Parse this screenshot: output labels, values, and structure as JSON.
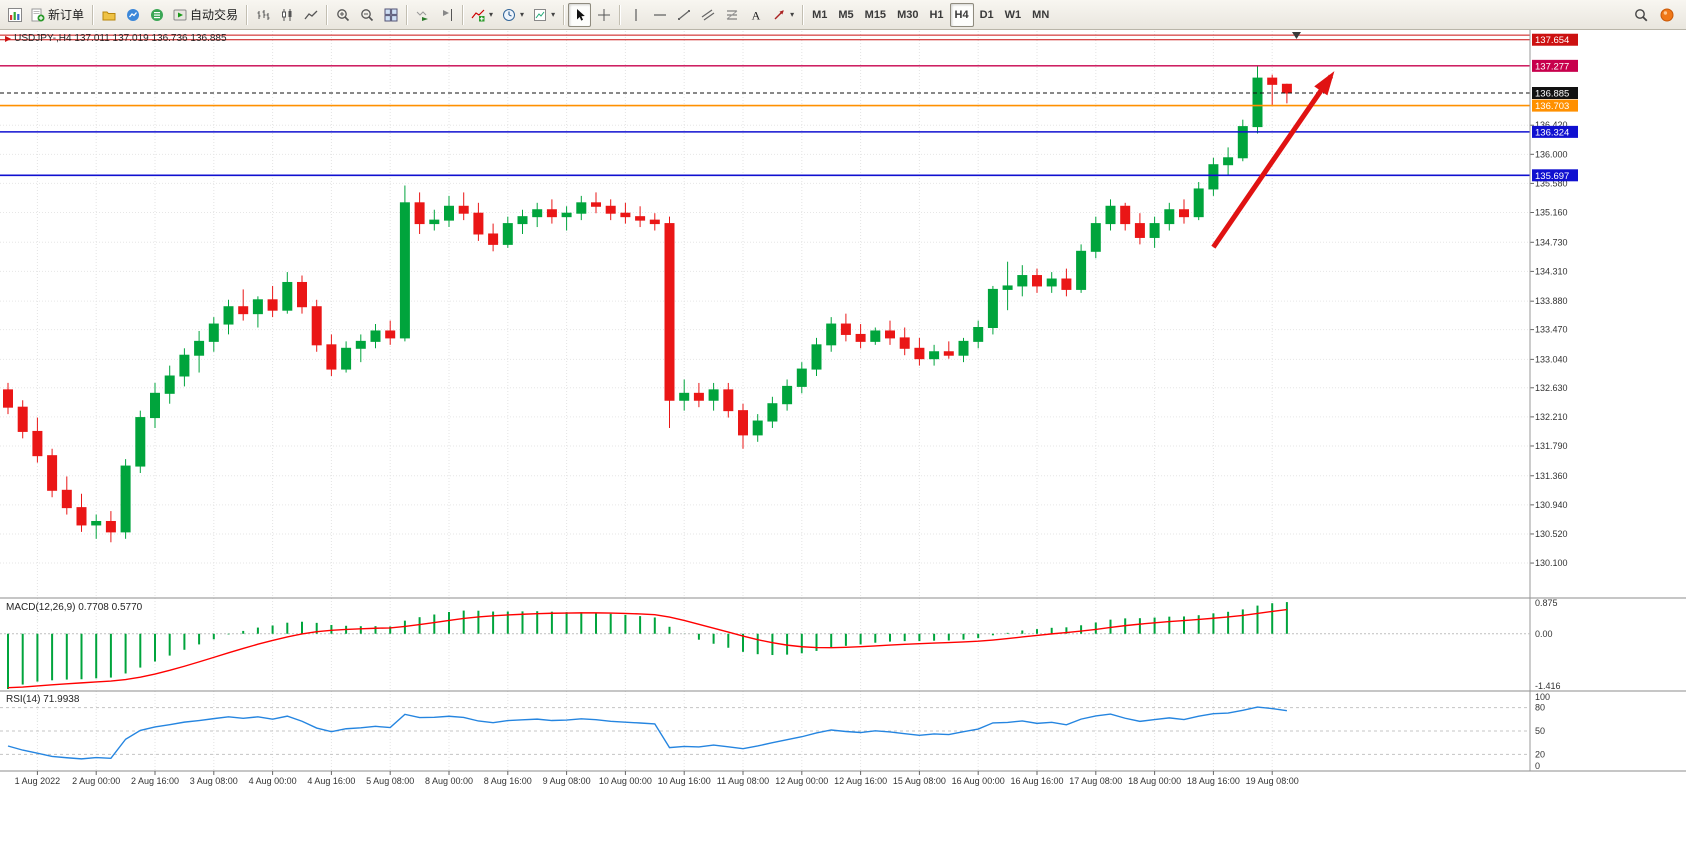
{
  "toolbar": {
    "items": [
      {
        "type": "btn",
        "icon": "chart-window-icon",
        "name": "charts-button"
      },
      {
        "type": "btn",
        "icon": "new-order-icon",
        "name": "new-order-button",
        "label": "新订单"
      },
      {
        "type": "sep"
      },
      {
        "type": "btn",
        "icon": "profiles-icon",
        "name": "profiles-button"
      },
      {
        "type": "btn",
        "icon": "market-watch-icon",
        "name": "market-watch-button"
      },
      {
        "type": "btn",
        "icon": "data-window-icon",
        "name": "data-window-button"
      },
      {
        "type": "btn",
        "icon": "autotrade-icon",
        "name": "auto-trading-button",
        "label": "自动交易"
      },
      {
        "type": "sep"
      },
      {
        "type": "btn",
        "icon": "bars-icon",
        "name": "bar-chart-button"
      },
      {
        "type": "btn",
        "icon": "candles-icon",
        "name": "candlestick-chart-button"
      },
      {
        "type": "btn",
        "icon": "linechart-icon",
        "name": "line-chart-button"
      },
      {
        "type": "sep"
      },
      {
        "type": "btn",
        "icon": "zoom-in-icon",
        "name": "zoom-in-button"
      },
      {
        "type": "btn",
        "icon": "zoom-out-icon",
        "name": "zoom-out-button"
      },
      {
        "type": "btn",
        "icon": "tile-icon",
        "name": "tile-windows-button"
      },
      {
        "type": "sep"
      },
      {
        "type": "btn",
        "icon": "autoscroll-icon",
        "name": "auto-scroll-button"
      },
      {
        "type": "btn",
        "icon": "shift-icon",
        "name": "chart-shift-button"
      },
      {
        "type": "sep"
      },
      {
        "type": "btn",
        "icon": "indicators-icon",
        "name": "indicators-button",
        "caret": true
      },
      {
        "type": "btn",
        "icon": "periods-icon",
        "name": "periods-button",
        "caret": true
      },
      {
        "type": "btn",
        "icon": "templates-icon",
        "name": "templates-button",
        "caret": true
      },
      {
        "type": "sep"
      },
      {
        "type": "btn",
        "icon": "cursor-icon",
        "name": "cursor-button",
        "active": true
      },
      {
        "type": "btn",
        "icon": "crosshair-icon",
        "name": "crosshair-button"
      },
      {
        "type": "sep"
      },
      {
        "type": "btn",
        "icon": "vline-icon",
        "name": "vertical-line-button"
      },
      {
        "type": "btn",
        "icon": "hline-icon",
        "name": "horizontal-line-button"
      },
      {
        "type": "btn",
        "icon": "trendline-icon",
        "name": "trendline-button"
      },
      {
        "type": "btn",
        "icon": "channel-icon",
        "name": "channel-button"
      },
      {
        "type": "btn",
        "icon": "fibo-icon",
        "name": "fibonacci-button"
      },
      {
        "type": "btn",
        "icon": "text-icon",
        "name": "text-button"
      },
      {
        "type": "btn",
        "icon": "arrows-icon",
        "name": "arrows-button",
        "caret": true
      },
      {
        "type": "sep"
      },
      {
        "type": "tf",
        "label": "M1"
      },
      {
        "type": "tf",
        "label": "M5"
      },
      {
        "type": "tf",
        "label": "M15"
      },
      {
        "type": "tf",
        "label": "M30"
      },
      {
        "type": "tf",
        "label": "H1"
      },
      {
        "type": "tf",
        "label": "H4",
        "active": true
      },
      {
        "type": "tf",
        "label": "D1"
      },
      {
        "type": "tf",
        "label": "W1"
      },
      {
        "type": "tf",
        "label": "MN"
      }
    ],
    "right_items": [
      {
        "icon": "search-icon",
        "name": "search-button"
      },
      {
        "icon": "status-icon",
        "name": "status-indicator"
      }
    ]
  },
  "chart": {
    "title": "USDJPY-,H4 137.011 137.019 136.736 136.885",
    "symbol": "USDJPY-",
    "period": "H4",
    "ohlc": {
      "open": "137.011",
      "high": "137.019",
      "low": "136.736",
      "close": "136.885"
    }
  },
  "chart_data": {
    "type": "candlestick",
    "symbol": "USDJPY",
    "timeframe": "H4",
    "up_color": "#00a43c",
    "down_color": "#ea1616",
    "price_range_top": 137.78,
    "price_range_bottom": 129.61,
    "candles": [
      [
        132.6,
        132.7,
        132.25,
        132.35
      ],
      [
        132.35,
        132.45,
        131.9,
        132.0
      ],
      [
        132.0,
        132.2,
        131.55,
        131.65
      ],
      [
        131.65,
        131.75,
        131.05,
        131.15
      ],
      [
        131.15,
        131.35,
        130.8,
        130.9
      ],
      [
        130.9,
        131.1,
        130.55,
        130.65
      ],
      [
        130.65,
        130.8,
        130.45,
        130.7
      ],
      [
        130.7,
        130.85,
        130.4,
        130.55
      ],
      [
        130.55,
        131.6,
        130.45,
        131.5
      ],
      [
        131.5,
        132.3,
        131.4,
        132.2
      ],
      [
        132.2,
        132.7,
        132.05,
        132.55
      ],
      [
        132.55,
        132.95,
        132.4,
        132.8
      ],
      [
        132.8,
        133.2,
        132.65,
        133.1
      ],
      [
        133.1,
        133.45,
        132.85,
        133.3
      ],
      [
        133.3,
        133.65,
        133.15,
        133.55
      ],
      [
        133.55,
        133.9,
        133.4,
        133.8
      ],
      [
        133.8,
        134.05,
        133.6,
        133.7
      ],
      [
        133.7,
        133.95,
        133.5,
        133.9
      ],
      [
        133.9,
        134.1,
        133.65,
        133.75
      ],
      [
        133.75,
        134.3,
        133.7,
        134.15
      ],
      [
        134.15,
        134.25,
        133.7,
        133.8
      ],
      [
        133.8,
        133.9,
        133.15,
        133.25
      ],
      [
        133.25,
        133.4,
        132.8,
        132.9
      ],
      [
        132.9,
        133.3,
        132.85,
        133.2
      ],
      [
        133.2,
        133.4,
        133.0,
        133.3
      ],
      [
        133.3,
        133.55,
        133.2,
        133.45
      ],
      [
        133.45,
        133.6,
        133.25,
        133.35
      ],
      [
        133.35,
        135.55,
        133.3,
        135.3
      ],
      [
        135.3,
        135.45,
        134.85,
        135.0
      ],
      [
        135.0,
        135.2,
        134.9,
        135.05
      ],
      [
        135.05,
        135.4,
        134.95,
        135.25
      ],
      [
        135.25,
        135.45,
        135.05,
        135.15
      ],
      [
        135.15,
        135.3,
        134.75,
        134.85
      ],
      [
        134.85,
        135.0,
        134.6,
        134.7
      ],
      [
        134.7,
        135.1,
        134.65,
        135.0
      ],
      [
        135.0,
        135.2,
        134.85,
        135.1
      ],
      [
        135.1,
        135.3,
        134.95,
        135.2
      ],
      [
        135.2,
        135.35,
        135.0,
        135.1
      ],
      [
        135.1,
        135.25,
        134.9,
        135.15
      ],
      [
        135.15,
        135.4,
        135.05,
        135.3
      ],
      [
        135.3,
        135.45,
        135.15,
        135.25
      ],
      [
        135.25,
        135.35,
        135.05,
        135.15
      ],
      [
        135.15,
        135.3,
        135.0,
        135.1
      ],
      [
        135.1,
        135.25,
        134.95,
        135.05
      ],
      [
        135.05,
        135.15,
        134.9,
        135.0
      ],
      [
        135.0,
        135.1,
        132.05,
        132.45
      ],
      [
        132.45,
        132.75,
        132.3,
        132.55
      ],
      [
        132.55,
        132.7,
        132.35,
        132.45
      ],
      [
        132.45,
        132.7,
        132.3,
        132.6
      ],
      [
        132.6,
        132.7,
        132.2,
        132.3
      ],
      [
        132.3,
        132.4,
        131.75,
        131.95
      ],
      [
        131.95,
        132.25,
        131.85,
        132.15
      ],
      [
        132.15,
        132.5,
        132.05,
        132.4
      ],
      [
        132.4,
        132.75,
        132.3,
        132.65
      ],
      [
        132.65,
        133.0,
        132.55,
        132.9
      ],
      [
        132.9,
        133.35,
        132.8,
        133.25
      ],
      [
        133.25,
        133.65,
        133.15,
        133.55
      ],
      [
        133.55,
        133.7,
        133.3,
        133.4
      ],
      [
        133.4,
        133.55,
        133.2,
        133.3
      ],
      [
        133.3,
        133.5,
        133.25,
        133.45
      ],
      [
        133.45,
        133.6,
        133.25,
        133.35
      ],
      [
        133.35,
        133.5,
        133.1,
        133.2
      ],
      [
        133.2,
        133.35,
        132.95,
        133.05
      ],
      [
        133.05,
        133.25,
        132.95,
        133.15
      ],
      [
        133.15,
        133.3,
        133.05,
        133.1
      ],
      [
        133.1,
        133.35,
        133.0,
        133.3
      ],
      [
        133.3,
        133.6,
        133.2,
        133.5
      ],
      [
        133.5,
        134.1,
        133.4,
        134.05
      ],
      [
        134.05,
        134.45,
        133.75,
        134.1
      ],
      [
        134.1,
        134.4,
        133.95,
        134.25
      ],
      [
        134.25,
        134.35,
        134.0,
        134.1
      ],
      [
        134.1,
        134.3,
        134.0,
        134.2
      ],
      [
        134.2,
        134.35,
        133.95,
        134.05
      ],
      [
        134.05,
        134.7,
        134.0,
        134.6
      ],
      [
        134.6,
        135.1,
        134.5,
        135.0
      ],
      [
        135.0,
        135.35,
        134.9,
        135.25
      ],
      [
        135.25,
        135.3,
        134.9,
        135.0
      ],
      [
        135.0,
        135.15,
        134.7,
        134.8
      ],
      [
        134.8,
        135.1,
        134.65,
        135.0
      ],
      [
        135.0,
        135.3,
        134.9,
        135.2
      ],
      [
        135.2,
        135.35,
        135.0,
        135.1
      ],
      [
        135.1,
        135.6,
        135.05,
        135.5
      ],
      [
        135.5,
        135.95,
        135.4,
        135.85
      ],
      [
        135.85,
        136.1,
        135.7,
        135.95
      ],
      [
        135.95,
        136.5,
        135.9,
        136.4
      ],
      [
        136.4,
        137.27,
        136.3,
        137.1
      ],
      [
        137.1,
        137.15,
        136.7,
        137.01
      ],
      [
        137.011,
        137.019,
        136.736,
        136.885
      ]
    ],
    "time_labels": [
      {
        "i": 2,
        "t": "1 Aug 2022"
      },
      {
        "i": 6,
        "t": "2 Aug 00:00"
      },
      {
        "i": 10,
        "t": "2 Aug 16:00"
      },
      {
        "i": 14,
        "t": "3 Aug 08:00"
      },
      {
        "i": 18,
        "t": "4 Aug 00:00"
      },
      {
        "i": 22,
        "t": "4 Aug 16:00"
      },
      {
        "i": 26,
        "t": "5 Aug 08:00"
      },
      {
        "i": 30,
        "t": "8 Aug 00:00"
      },
      {
        "i": 34,
        "t": "8 Aug 16:00"
      },
      {
        "i": 38,
        "t": "9 Aug 08:00"
      },
      {
        "i": 42,
        "t": "10 Aug 00:00"
      },
      {
        "i": 46,
        "t": "10 Aug 16:00"
      },
      {
        "i": 50,
        "t": "11 Aug 08:00"
      },
      {
        "i": 54,
        "t": "12 Aug 00:00"
      },
      {
        "i": 58,
        "t": "12 Aug 16:00"
      },
      {
        "i": 62,
        "t": "15 Aug 08:00"
      },
      {
        "i": 66,
        "t": "16 Aug 00:00"
      },
      {
        "i": 70,
        "t": "16 Aug 16:00"
      },
      {
        "i": 74,
        "t": "17 Aug 08:00"
      },
      {
        "i": 78,
        "t": "18 Aug 00:00"
      },
      {
        "i": 82,
        "t": "18 Aug 16:00"
      },
      {
        "i": 86,
        "t": "19 Aug 08:00"
      }
    ],
    "price_ticks": [
      "136.420",
      "136.000",
      "135.580",
      "135.160",
      "134.730",
      "134.310",
      "133.880",
      "133.470",
      "133.040",
      "132.630",
      "132.210",
      "131.790",
      "131.360",
      "130.940",
      "130.520",
      "130.100"
    ],
    "hlines": [
      {
        "price": 137.72,
        "color": "#cc1111",
        "width": 1,
        "label": null
      },
      {
        "price": 137.654,
        "color": "#cc1111",
        "width": 1,
        "label": "137.654"
      },
      {
        "price": 137.277,
        "color": "#c7004c",
        "width": 1.4,
        "label": "137.277"
      },
      {
        "price": 136.703,
        "color": "#ff9000",
        "width": 1.6,
        "label": "136.703"
      },
      {
        "price": 136.324,
        "color": "#1010d0",
        "width": 1.6,
        "label": "136.324"
      },
      {
        "price": 135.697,
        "color": "#1010d0",
        "width": 1.6,
        "label": "135.697"
      }
    ],
    "bid_line": {
      "price": 136.885,
      "label": "136.885",
      "color": "#111111"
    },
    "arrow": {
      "i1": 82,
      "p1": 134.66,
      "i2": 90,
      "p2": 137.13,
      "color": "#e01212"
    },
    "macd": {
      "label": "MACD(12,26,9) 0.7708 0.5770",
      "params": [
        12,
        26,
        9
      ],
      "value": 0.7708,
      "signal": 0.577,
      "scale_top": 0.875,
      "scale_bottom": -1.416,
      "scale_labels": [
        "0.875",
        "0.00",
        "-1.416"
      ],
      "histogram_color": "#00a43c",
      "signal_color": "#ff0000"
    },
    "rsi": {
      "label": "RSI(14) 71.9938",
      "period": 14,
      "value": 71.9938,
      "levels": [
        80,
        50,
        20
      ],
      "scale_labels": [
        "100",
        "80",
        "50",
        "20",
        "0"
      ],
      "line_color": "#2585e0"
    },
    "indicator_seeds": {
      "ema12_offset": -0.55,
      "ema26_offset": 1.0,
      "signal_start": -1.35,
      "rsi_avg_gain": 0.04,
      "rsi_avg_loss": 0.09
    }
  }
}
